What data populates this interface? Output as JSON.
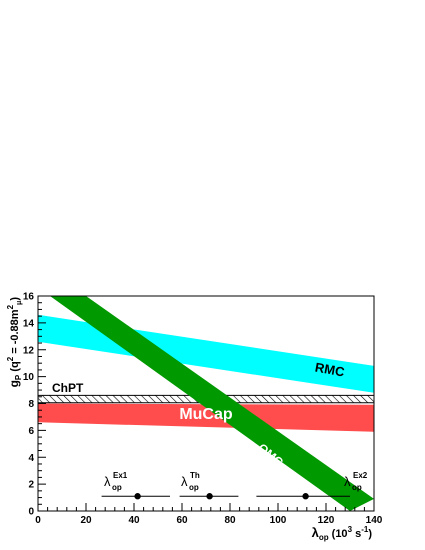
{
  "chart_data": {
    "type": "area",
    "title": "",
    "xlabel": {
      "main": "λ",
      "sub": "op",
      "units": " (10",
      "units_sup": "3",
      "units_end": " s",
      "units_sup2": "-1",
      "units_close": ")"
    },
    "ylabel": {
      "main": "g",
      "sub": "P",
      "rest": " (q",
      "sup": "2",
      "rest2": " = -0.88m",
      "sup2": "2",
      "sub2": "μ",
      "close": ")"
    },
    "xlim": [
      0,
      140
    ],
    "ylim": [
      0,
      16
    ],
    "x_ticks": [
      0,
      20,
      40,
      60,
      80,
      100,
      120,
      140
    ],
    "y_ticks": [
      0,
      2,
      4,
      6,
      8,
      10,
      12,
      14,
      16
    ],
    "bands": [
      {
        "name": "RMC",
        "color": "#00ffff",
        "lower": [
          [
            0,
            12.6
          ],
          [
            140,
            8.8
          ]
        ],
        "upper": [
          [
            0,
            14.6
          ],
          [
            140,
            10.8
          ]
        ]
      },
      {
        "name": "MuCap",
        "color": "#ff4c4c",
        "lower": [
          [
            0,
            6.6
          ],
          [
            140,
            5.9
          ]
        ],
        "upper": [
          [
            0,
            8.0
          ],
          [
            140,
            7.9
          ]
        ]
      },
      {
        "name": "ChPT",
        "color": "#000000",
        "lower": [
          [
            0,
            8.05
          ],
          [
            140,
            8.05
          ]
        ],
        "upper": [
          [
            0,
            8.6
          ],
          [
            140,
            8.6
          ]
        ],
        "hatched": true
      },
      {
        "name": "OMC",
        "color": "#009900",
        "lower": [
          [
            5,
            16
          ],
          [
            130,
            0
          ]
        ],
        "upper": [
          [
            20,
            16
          ],
          [
            140,
            0.9
          ]
        ]
      }
    ],
    "points": [
      {
        "label_main": "λ",
        "label_sub": "op",
        "label_sup": "Ex1",
        "x": 41.5,
        "xerr_low": 26.5,
        "xerr_high": 55.0,
        "y": 1.1
      },
      {
        "label_main": "λ",
        "label_sub": "op",
        "label_sup": "Th",
        "x": 71.5,
        "xerr_low": 59.0,
        "xerr_high": 83.5,
        "y": 1.1
      },
      {
        "label_main": "λ",
        "label_sub": "op",
        "label_sup": "Ex2",
        "x": 111.5,
        "xerr_low": 91.0,
        "xerr_high": 130.0,
        "y": 1.1
      }
    ],
    "band_labels": {
      "RMC": "RMC",
      "MuCap": "MuCap",
      "ChPT": "ChPT",
      "OMC": "OMC"
    },
    "grid": false
  }
}
